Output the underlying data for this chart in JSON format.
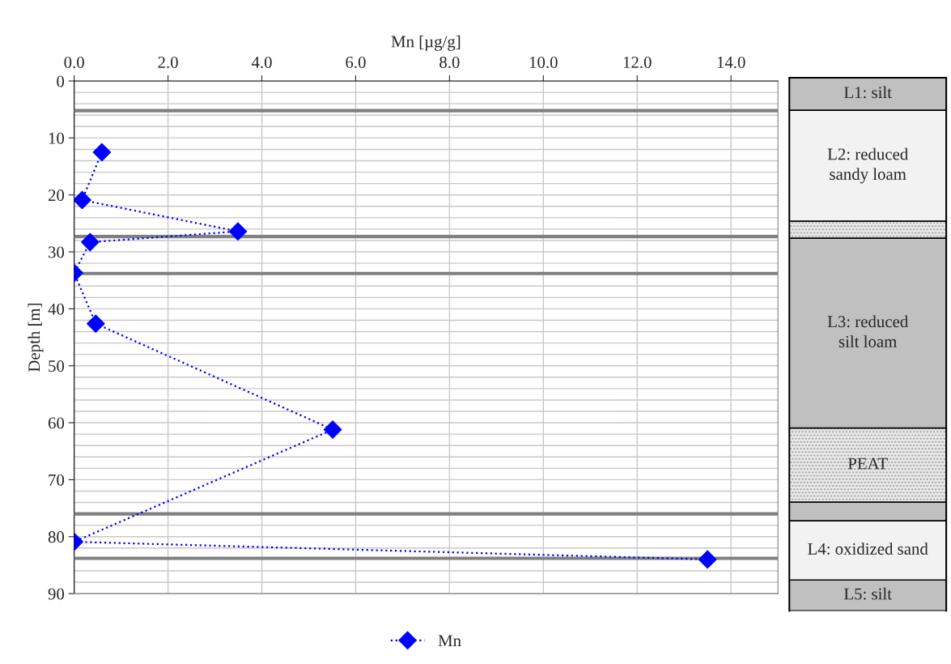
{
  "chart_data": [
    {
      "type": "line",
      "xlabel": "Mn [µg/g]",
      "ylabel": "Depth [m]",
      "xlim": [
        0,
        15
      ],
      "xticks": [
        {
          "value": 0,
          "label": "0.0"
        },
        {
          "value": 2,
          "label": "2.0"
        },
        {
          "value": 4,
          "label": "4.0"
        },
        {
          "value": 6,
          "label": "6.0"
        },
        {
          "value": 8,
          "label": "8.0"
        },
        {
          "value": 10,
          "label": "10.0"
        },
        {
          "value": 12,
          "label": "12.0"
        },
        {
          "value": 14,
          "label": "14.0"
        }
      ],
      "ylim": [
        90,
        0
      ],
      "yticks": [
        0,
        {
          "value": 2,
          "label": null
        },
        {
          "value": 4,
          "label": null
        },
        {
          "value": 6,
          "label": null
        },
        {
          "value": 8,
          "label": null
        },
        10,
        {
          "value": 12,
          "label": null
        },
        {
          "value": 14,
          "label": null
        },
        {
          "value": 16,
          "label": null
        },
        {
          "value": 18,
          "label": null
        },
        20,
        {
          "value": 22,
          "label": null
        },
        {
          "value": 24,
          "label": null
        },
        {
          "value": 26,
          "label": null
        },
        {
          "value": 28,
          "label": null
        },
        30,
        {
          "value": 32,
          "label": null
        },
        {
          "value": 36,
          "label": null
        },
        {
          "value": 38,
          "label": null
        },
        40,
        {
          "value": 42,
          "label": null
        },
        {
          "value": 44,
          "label": null
        },
        {
          "value": 46,
          "label": null
        },
        {
          "value": 48,
          "label": null
        },
        50,
        {
          "value": 52,
          "label": null
        },
        {
          "value": 54,
          "label": null
        },
        {
          "value": 56,
          "label": null
        },
        {
          "value": 58,
          "label": null
        },
        60,
        {
          "value": 62,
          "label": null
        },
        {
          "value": 64,
          "label": null
        },
        {
          "value": 66,
          "label": null
        },
        {
          "value": 68,
          "label": null
        },
        70,
        {
          "value": 72,
          "label": null
        },
        {
          "value": 74,
          "label": null
        },
        {
          "value": 78,
          "label": null
        },
        80,
        {
          "value": 82,
          "label": null
        },
        {
          "value": 86,
          "label": null
        },
        {
          "value": 88,
          "label": null
        },
        90
      ],
      "series": [
        {
          "name": "Mn",
          "color": "#0000ff",
          "x": [
            0.59,
            0.17,
            3.49,
            0.34,
            0.0,
            0.46,
            5.51,
            0.0,
            13.5
          ],
          "values": [
            12.5,
            20.9,
            26.4,
            28.3,
            33.7,
            42.6,
            61.2,
            80.9,
            84.0
          ]
        }
      ],
      "ref_lines": [
        {
          "axis": "y",
          "value": 5.2,
          "color": "#808080"
        },
        {
          "axis": "y",
          "value": 27.3,
          "color": "#808080"
        },
        {
          "axis": "y",
          "value": 33.8,
          "color": "#808080"
        },
        {
          "axis": "y",
          "value": 76,
          "color": "#808080"
        },
        {
          "axis": "y",
          "value": 83.8,
          "color": "#808080"
        }
      ],
      "marker": "diamond",
      "line_style": "dotted",
      "grid": true,
      "legend": "bottom"
    },
    {
      "type": "other",
      "annotations": [
        "L1: silt",
        "L2: reduced\nsandy loam",
        "L3: reduced\nsilt loam",
        "PEAT",
        "L4: oxidized sand",
        "L5: silt"
      ]
    }
  ]
}
